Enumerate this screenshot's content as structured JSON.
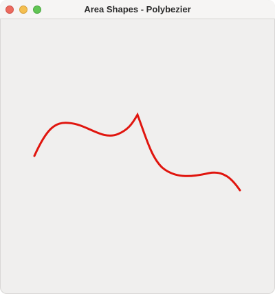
{
  "window": {
    "title": "Area Shapes - Polybezier"
  },
  "drawing": {
    "shape": "polybezier",
    "stroke_color": "#e0150e"
  }
}
